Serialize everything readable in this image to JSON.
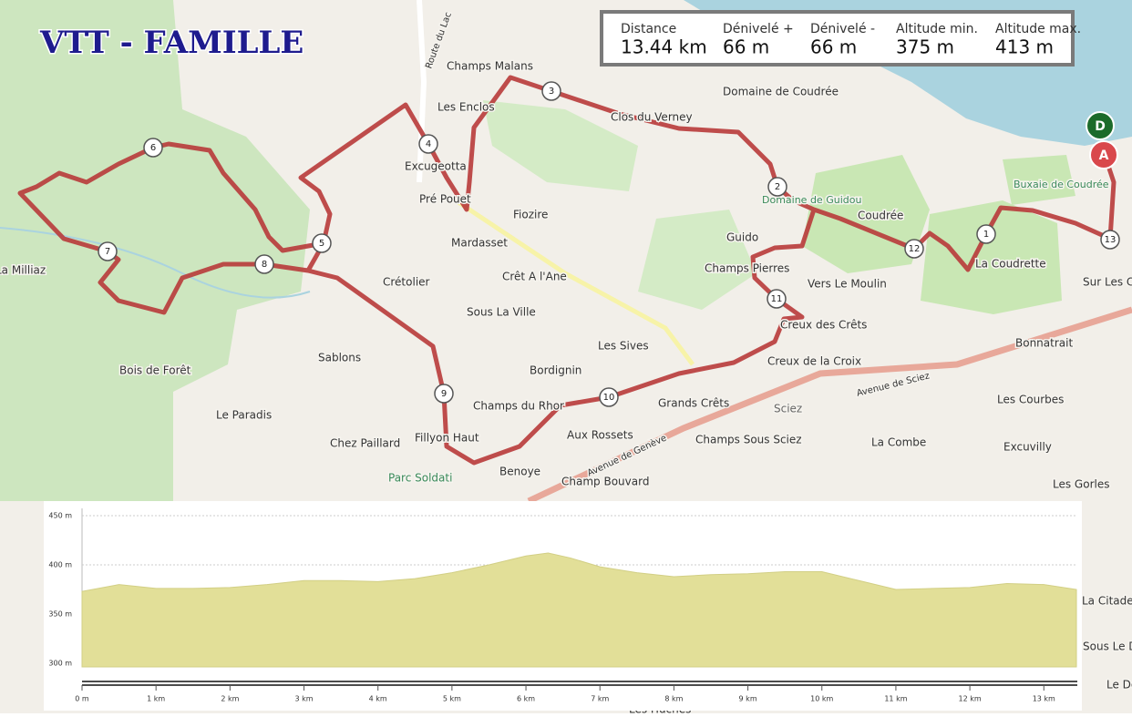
{
  "title": "VTT - FAMILLE",
  "stats": [
    {
      "label": "Distance",
      "value": "13.44 km"
    },
    {
      "label": "Dénivelé +",
      "value": "66 m"
    },
    {
      "label": "Dénivelé -",
      "value": "66 m"
    },
    {
      "label": "Altitude min.",
      "value": "375 m"
    },
    {
      "label": "Altitude max.",
      "value": "413 m"
    }
  ],
  "places": [
    "Champs Malans",
    "Les Enclos",
    "Excugeotta",
    "Pré Pouet",
    "Fiozire",
    "Mardasset",
    "Crêt A l'Ane",
    "Crétolier",
    "Sous La Ville",
    "Sablons",
    "Bois de Forêt",
    "Le Paradis",
    "Chez Paillard",
    "Fillyon Haut",
    "Parc Soldati",
    "Benoye",
    "Champs du Rhor",
    "Aux Rossets",
    "Champ Bouvard",
    "Bordignin",
    "Les Sives",
    "Grands Crêts",
    "Champs Sous Sciez",
    "Sciez",
    "Creux de la Croix",
    "Creux des Crêts",
    "Champs Pierres",
    "Guido",
    "Vers Le Moulin",
    "Coudrée",
    "La Coudrette",
    "Buxaie de Coudrée",
    "Sur Les Crêts",
    "Bonnatrait",
    "Les Courbes",
    "Excuvilly",
    "La Combe",
    "Les Gorles",
    "Domaine de Coudrée",
    "Clos du Verney",
    "Domaine de Guidou",
    "Avenue de Sciez",
    "Avenue de Genève",
    "La Milliaz",
    "Route du Lac",
    "La Citadelle",
    "Sous Le Dy",
    "Le Dé",
    "Les Huches"
  ],
  "markers": [
    "1",
    "2",
    "3",
    "4",
    "5",
    "6",
    "7",
    "8",
    "9",
    "10",
    "11",
    "12",
    "13"
  ],
  "start": "D",
  "end": "A",
  "chart_data": {
    "type": "area",
    "x": [
      0,
      0.5,
      1,
      1.5,
      2,
      2.5,
      3,
      3.5,
      4,
      4.5,
      5,
      5.5,
      6,
      6.3,
      6.6,
      7,
      7.5,
      8,
      8.5,
      9,
      9.5,
      10,
      10.5,
      11,
      11.5,
      12,
      12.5,
      13,
      13.44
    ],
    "values": [
      373,
      380,
      376,
      376,
      377,
      380,
      384,
      384,
      383,
      386,
      392,
      400,
      409,
      412,
      407,
      398,
      392,
      388,
      390,
      391,
      393,
      393,
      384,
      375,
      376,
      377,
      381,
      380,
      375
    ],
    "color": "#e2df98",
    "xlim": [
      0,
      13.44
    ],
    "xticks": [
      {
        "value": 0,
        "label": "0 m"
      },
      {
        "value": 1,
        "label": "1 km"
      },
      {
        "value": 2,
        "label": "2 km"
      },
      {
        "value": 3,
        "label": "3 km"
      },
      {
        "value": 4,
        "label": "4 km"
      },
      {
        "value": 5,
        "label": "5 km"
      },
      {
        "value": 6,
        "label": "6 km"
      },
      {
        "value": 7,
        "label": "7 km"
      },
      {
        "value": 8,
        "label": "8 km"
      },
      {
        "value": 9,
        "label": "9 km"
      },
      {
        "value": 10,
        "label": "10 km"
      },
      {
        "value": 11,
        "label": "11 km"
      },
      {
        "value": 12,
        "label": "12 km"
      },
      {
        "value": 13,
        "label": "13 km"
      }
    ],
    "ylim": [
      300,
      450
    ],
    "yticks": [
      {
        "value": 300,
        "label": "300 m"
      },
      {
        "value": 350,
        "label": "350 m"
      },
      {
        "value": 400,
        "label": "400 m"
      },
      {
        "value": 450,
        "label": "450 m"
      }
    ],
    "grid": true
  }
}
